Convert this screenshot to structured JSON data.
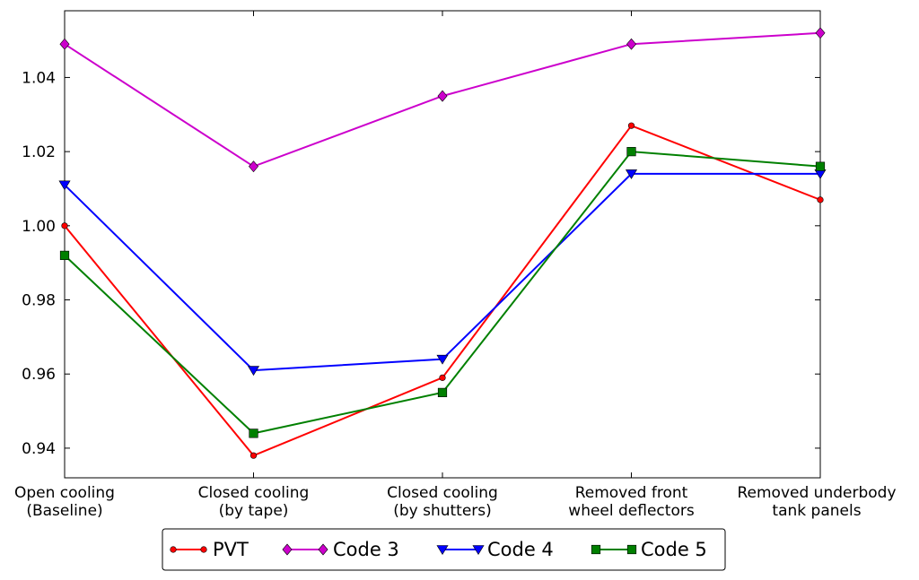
{
  "chart_data": {
    "type": "line",
    "categories": [
      [
        "Open cooling",
        "(Baseline)"
      ],
      [
        "Closed cooling",
        "(by tape)"
      ],
      [
        "Closed cooling",
        "(by shutters)"
      ],
      [
        "Removed front",
        "wheel deflectors"
      ],
      [
        "Removed underbody",
        "tank panels"
      ]
    ],
    "ylim": [
      0.932,
      1.058
    ],
    "yticks": [
      "0.94",
      "0.96",
      "0.98",
      "1.00",
      "1.02",
      "1.04"
    ],
    "ytick_values": [
      0.94,
      0.96,
      0.98,
      1.0,
      1.02,
      1.04
    ],
    "grid": false,
    "legend_position": "bottom",
    "series": [
      {
        "name": "PVT",
        "color": "#ff0000",
        "marker": "circle",
        "values": [
          1.0,
          0.938,
          0.959,
          1.027,
          1.007
        ]
      },
      {
        "name": "Code 3",
        "color": "#cc00cc",
        "marker": "diamond",
        "values": [
          1.049,
          1.016,
          1.035,
          1.049,
          1.052
        ]
      },
      {
        "name": "Code 4",
        "color": "#0000ff",
        "marker": "triangle-down",
        "values": [
          1.011,
          0.961,
          0.964,
          1.014,
          1.014
        ]
      },
      {
        "name": "Code 5",
        "color": "#008000",
        "marker": "square",
        "values": [
          0.992,
          0.944,
          0.955,
          1.02,
          1.016
        ]
      }
    ]
  }
}
